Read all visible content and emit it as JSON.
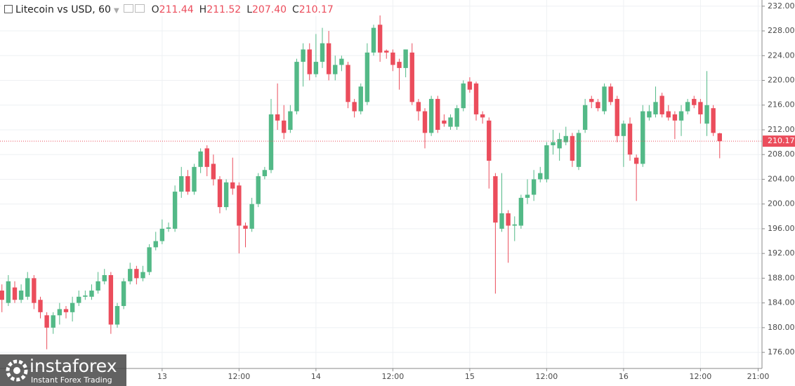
{
  "header": {
    "title": "Litecoin vs USD, 60",
    "keys": [
      "O",
      "H",
      "L",
      "C"
    ],
    "values": [
      "211.44",
      "211.52",
      "207.40",
      "210.17"
    ]
  },
  "watermark": {
    "brand": "instaforex",
    "tagline": "Instant Forex Trading"
  },
  "chart_data": {
    "type": "candlestick",
    "up_color": "#53b987",
    "down_color": "#eb4d5c",
    "grid": true,
    "xlim": [
      -0.3,
      118.6
    ],
    "ylim": [
      173.4,
      233.0
    ],
    "yticks": [
      {
        "value": 176,
        "label": "176.00"
      },
      {
        "value": 180,
        "label": "180.00"
      },
      {
        "value": 184,
        "label": "184.00"
      },
      {
        "value": 188,
        "label": "188.00"
      },
      {
        "value": 192,
        "label": "192.00"
      },
      {
        "value": 196,
        "label": "196.00"
      },
      {
        "value": 200,
        "label": "200.00"
      },
      {
        "value": 204,
        "label": "204.00"
      },
      {
        "value": 208,
        "label": "208.00"
      },
      {
        "value": 212,
        "label": "212.00"
      },
      {
        "value": 216,
        "label": "216.00"
      },
      {
        "value": 220,
        "label": "220.00"
      },
      {
        "value": 224,
        "label": "224.00"
      },
      {
        "value": 228,
        "label": "228.00"
      },
      {
        "value": 232,
        "label": "232.00"
      }
    ],
    "xticks": [
      {
        "value": 25,
        "label": "13"
      },
      {
        "value": 37,
        "label": "12:00"
      },
      {
        "value": 49,
        "label": "14"
      },
      {
        "value": 61,
        "label": "12:00"
      },
      {
        "value": 73,
        "label": "15"
      },
      {
        "value": 85,
        "label": "12:00"
      },
      {
        "value": 97,
        "label": "16"
      },
      {
        "value": 109,
        "label": "12:00"
      },
      {
        "value": 118,
        "label": "21:00"
      }
    ],
    "x": [
      0,
      1,
      2,
      3,
      4,
      5,
      6,
      7,
      8,
      9,
      10,
      11,
      12,
      13,
      14,
      15,
      16,
      17,
      18,
      19,
      20,
      21,
      22,
      23,
      24,
      25,
      26,
      27,
      28,
      29,
      30,
      31,
      32,
      33,
      34,
      35,
      36,
      37,
      38,
      39,
      40,
      41,
      42,
      43,
      44,
      45,
      46,
      47,
      48,
      49,
      50,
      51,
      52,
      53,
      54,
      55,
      56,
      57,
      58,
      59,
      60,
      61,
      62,
      63,
      64,
      65,
      66,
      67,
      68,
      69,
      70,
      71,
      72,
      73,
      74,
      75,
      76,
      77,
      78,
      79,
      80,
      81,
      82,
      83,
      84,
      85,
      86,
      87,
      88,
      89,
      90,
      91,
      92,
      93,
      94,
      95,
      96,
      97,
      98,
      99,
      100,
      101,
      102,
      103,
      104,
      105,
      106,
      107,
      108,
      109,
      110,
      111,
      112
    ],
    "open": [
      186,
      184,
      186.5,
      184.5,
      185,
      188,
      184.5,
      182,
      180,
      182,
      183,
      182.5,
      184,
      185,
      185,
      186,
      187.5,
      188.5,
      180.5,
      183.5,
      187.5,
      189.5,
      188,
      189,
      193,
      194,
      196,
      196,
      202,
      204.5,
      202,
      206,
      209,
      206.5,
      204,
      199.5,
      203.5,
      203,
      196.5,
      196,
      200,
      204.5,
      205.5,
      214.5,
      213.5,
      212,
      215,
      223,
      225,
      221,
      223,
      226,
      221,
      222.5,
      222.5,
      216.5,
      215,
      216.5,
      224.5,
      229,
      224.8,
      224.5,
      223,
      222,
      224.5,
      216.5,
      215,
      211.5,
      217,
      213.5,
      212.5,
      212.5,
      215.5,
      219.8,
      219.5,
      214.5,
      213.5,
      204.5,
      196,
      198.5,
      196.5,
      196.5,
      201,
      201.5,
      204,
      204,
      209.5,
      209,
      210,
      211,
      206,
      212,
      217,
      216.5,
      215,
      219,
      217,
      211,
      213,
      207.5,
      206.5,
      214,
      214.5,
      217.5,
      215,
      214.5,
      213.5,
      215,
      217,
      216.5,
      213,
      215.5,
      211.44
    ],
    "high": [
      187,
      188.5,
      187.5,
      187,
      189,
      188.5,
      185,
      182.5,
      182.5,
      184,
      183.5,
      185,
      186,
      186,
      187,
      189,
      189.5,
      189,
      184,
      188,
      190.5,
      190,
      190,
      193.5,
      195.5,
      197.5,
      197,
      203,
      206,
      205.5,
      206.5,
      209,
      209.5,
      208,
      204.5,
      204,
      207.5,
      203.5,
      197,
      201,
      205,
      206,
      217,
      219.5,
      216,
      216,
      223.5,
      226,
      226,
      227.5,
      228.5,
      228,
      224,
      224,
      223,
      217,
      219.5,
      226,
      229,
      230.5,
      225,
      225,
      223.5,
      225,
      226,
      217,
      215.5,
      217.5,
      217.5,
      214.5,
      214.5,
      216,
      220,
      220.5,
      219.8,
      215,
      214,
      205,
      205,
      199,
      198,
      201.5,
      204,
      205.5,
      206,
      210,
      212,
      211.5,
      212.5,
      211.5,
      212,
      217,
      217.5,
      217,
      219.5,
      219.5,
      217.5,
      213.5,
      214,
      208,
      216,
      216,
      219,
      218,
      216,
      215,
      216,
      217,
      217.5,
      217,
      221.5,
      216,
      211.52
    ],
    "low": [
      182.5,
      183.5,
      184,
      184,
      184.5,
      183,
      181.5,
      176.5,
      179,
      180.5,
      181.5,
      181,
      183.5,
      184.5,
      184.5,
      185.5,
      187,
      179,
      180,
      183,
      187,
      187,
      187.5,
      188.5,
      192.5,
      193.5,
      195.5,
      195.5,
      201,
      201.5,
      201.5,
      205,
      204.5,
      203,
      198.5,
      199,
      201.5,
      192,
      193,
      195.5,
      199.5,
      204,
      205,
      212,
      210.5,
      211.5,
      214.5,
      219,
      220,
      220.5,
      222,
      220,
      220,
      221.5,
      215.5,
      214,
      214.5,
      216,
      224,
      223,
      223.5,
      221.5,
      218.5,
      220.5,
      216,
      213.5,
      209,
      211,
      211.5,
      212.5,
      212,
      212,
      215,
      218,
      213.5,
      213,
      202.5,
      185.5,
      195.5,
      190.5,
      194,
      196,
      200,
      200.5,
      203.5,
      203.5,
      208,
      207,
      209.5,
      206,
      205.5,
      211.5,
      215.5,
      215,
      214.5,
      216,
      210,
      206,
      207,
      200.5,
      206,
      213.5,
      214,
      214,
      213.5,
      210.5,
      211,
      214.5,
      215.5,
      213,
      211,
      211,
      207.4
    ],
    "close": [
      184.5,
      187.5,
      184.5,
      186,
      188,
      184,
      182.5,
      180,
      182,
      183,
      182.5,
      184,
      185,
      185.2,
      186,
      187.5,
      188.5,
      180.5,
      183.5,
      187.5,
      189.5,
      188,
      189,
      193,
      194,
      196,
      196.2,
      202,
      204.5,
      202,
      206,
      208.5,
      206,
      204,
      199.5,
      203.5,
      202.5,
      196.5,
      196,
      200,
      204.5,
      205.5,
      214.5,
      213.5,
      211.5,
      215,
      223,
      225,
      221,
      223,
      226,
      221,
      222.5,
      223.5,
      216.5,
      215,
      219,
      224.5,
      228.5,
      224.5,
      224.5,
      222.5,
      222,
      225,
      216.5,
      215,
      211.5,
      217,
      212,
      213,
      214,
      215.5,
      219.5,
      218.5,
      214.5,
      214,
      207,
      197,
      198.5,
      196.5,
      196.7,
      201,
      201.5,
      204,
      205,
      209.5,
      210,
      210.5,
      211,
      207,
      211.5,
      216,
      216.5,
      215.5,
      219,
      216.5,
      211,
      213,
      208,
      206.5,
      215,
      215,
      216.5,
      214.5,
      214,
      213.5,
      215,
      216.5,
      216,
      214.5,
      216,
      211.5,
      210.17
    ]
  }
}
